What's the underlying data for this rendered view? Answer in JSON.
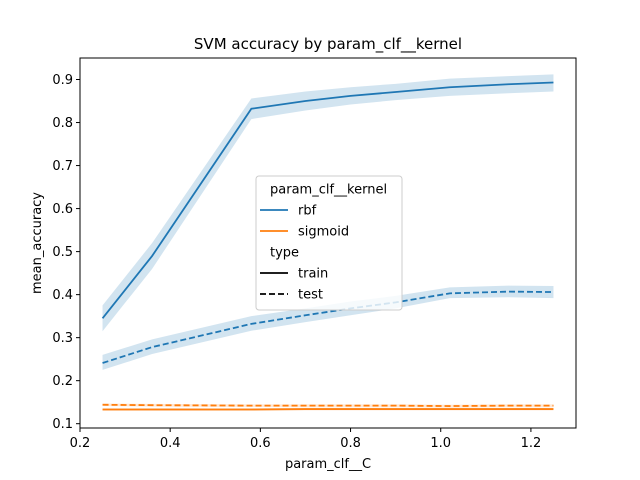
{
  "chart_data": {
    "type": "line",
    "title": "SVM accuracy by param_clf__kernel",
    "xlabel": "param_clf__C",
    "ylabel": "mean_accuracy",
    "xlim": [
      0.2,
      1.3
    ],
    "ylim": [
      0.09,
      0.95
    ],
    "xticks": [
      0.2,
      0.4,
      0.6,
      0.8,
      1.0,
      1.2
    ],
    "xtick_labels": [
      "0.2",
      "0.4",
      "0.6",
      "0.8",
      "1.0",
      "1.2"
    ],
    "yticks": [
      0.1,
      0.2,
      0.3,
      0.4,
      0.5,
      0.6,
      0.7,
      0.8,
      0.9
    ],
    "ytick_labels": [
      "0.1",
      "0.2",
      "0.3",
      "0.4",
      "0.5",
      "0.6",
      "0.7",
      "0.8",
      "0.9"
    ],
    "grid": false,
    "legend": {
      "placement": "center",
      "hue_title": "param_clf__kernel",
      "style_title": "type",
      "entries": [
        {
          "label": "rbf",
          "color": "#1f77b4",
          "dash": "solid"
        },
        {
          "label": "sigmoid",
          "color": "#ff7f0e",
          "dash": "solid"
        },
        {
          "label": "train",
          "color": "#000000",
          "dash": "solid"
        },
        {
          "label": "test",
          "color": "#000000",
          "dash": "dashed"
        }
      ]
    },
    "series": [
      {
        "kernel": "rbf",
        "type": "train",
        "color": "#1f77b4",
        "dash": "solid",
        "x": [
          0.25,
          0.36,
          0.58,
          0.7,
          0.8,
          0.9,
          1.02,
          1.15,
          1.25
        ],
        "y": [
          0.345,
          0.49,
          0.832,
          0.85,
          0.862,
          0.871,
          0.882,
          0.889,
          0.893
        ],
        "ci_low": [
          0.315,
          0.46,
          0.808,
          0.828,
          0.842,
          0.852,
          0.862,
          0.868,
          0.872
        ],
        "ci_high": [
          0.375,
          0.52,
          0.856,
          0.872,
          0.882,
          0.89,
          0.902,
          0.908,
          0.912
        ]
      },
      {
        "kernel": "rbf",
        "type": "test",
        "color": "#1f77b4",
        "dash": "dashed",
        "x": [
          0.25,
          0.36,
          0.58,
          0.7,
          0.8,
          0.9,
          1.02,
          1.15,
          1.25
        ],
        "y": [
          0.241,
          0.278,
          0.332,
          0.352,
          0.368,
          0.382,
          0.403,
          0.407,
          0.406
        ],
        "ci_low": [
          0.225,
          0.262,
          0.316,
          0.336,
          0.352,
          0.368,
          0.392,
          0.394,
          0.392
        ],
        "ci_high": [
          0.26,
          0.296,
          0.35,
          0.368,
          0.384,
          0.397,
          0.417,
          0.421,
          0.42
        ]
      },
      {
        "kernel": "sigmoid",
        "type": "train",
        "color": "#ff7f0e",
        "dash": "solid",
        "x": [
          0.25,
          0.36,
          0.58,
          0.7,
          0.8,
          0.9,
          1.02,
          1.15,
          1.25
        ],
        "y": [
          0.133,
          0.133,
          0.133,
          0.134,
          0.134,
          0.134,
          0.134,
          0.134,
          0.134
        ],
        "ci_low": [
          0.13,
          0.13,
          0.13,
          0.131,
          0.131,
          0.131,
          0.131,
          0.131,
          0.131
        ],
        "ci_high": [
          0.136,
          0.136,
          0.136,
          0.137,
          0.137,
          0.137,
          0.137,
          0.137,
          0.137
        ]
      },
      {
        "kernel": "sigmoid",
        "type": "test",
        "color": "#ff7f0e",
        "dash": "dashed",
        "x": [
          0.25,
          0.36,
          0.58,
          0.7,
          0.8,
          0.9,
          1.02,
          1.15,
          1.25
        ],
        "y": [
          0.144,
          0.143,
          0.142,
          0.142,
          0.142,
          0.142,
          0.141,
          0.142,
          0.142
        ],
        "ci_low": [
          0.141,
          0.14,
          0.139,
          0.139,
          0.139,
          0.139,
          0.138,
          0.139,
          0.139
        ],
        "ci_high": [
          0.147,
          0.146,
          0.145,
          0.145,
          0.145,
          0.145,
          0.144,
          0.145,
          0.145
        ]
      }
    ]
  }
}
